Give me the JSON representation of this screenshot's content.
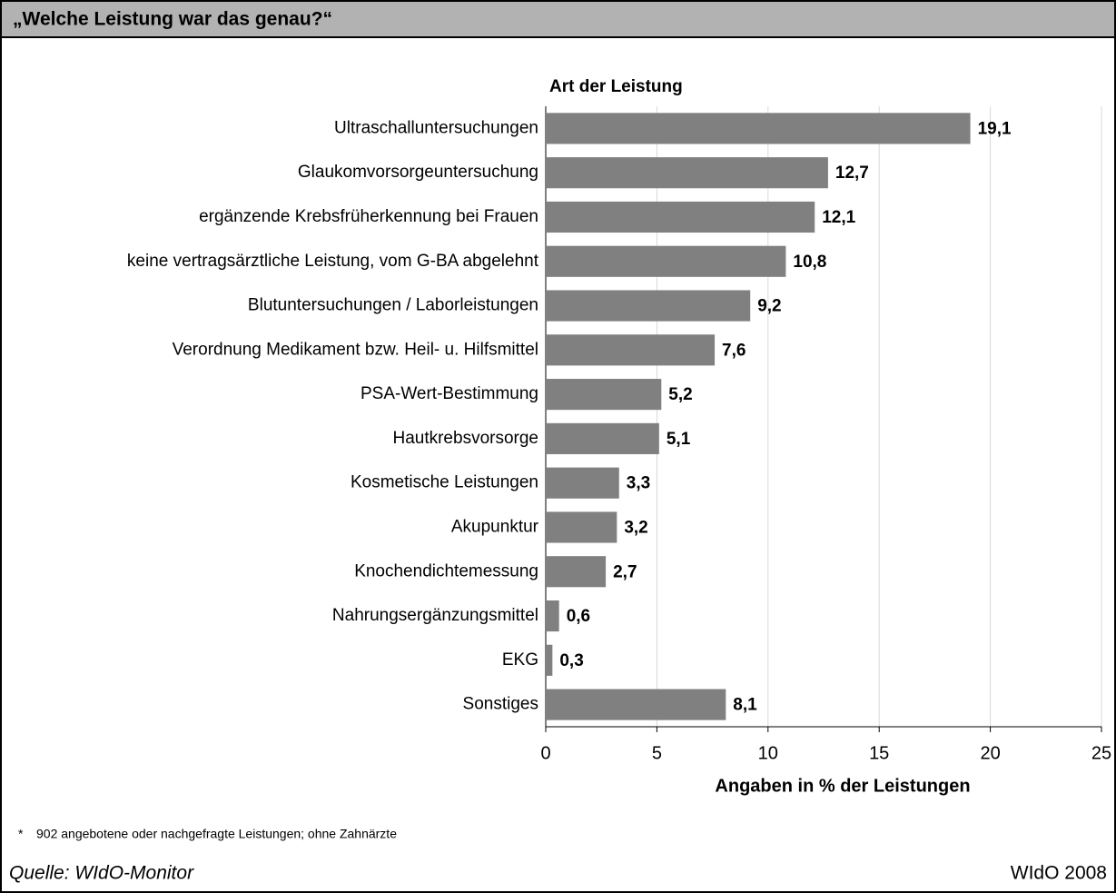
{
  "header": {
    "title": "„Welche Leistung war das genau?“"
  },
  "chart_data": {
    "type": "bar",
    "orientation": "horizontal",
    "ylabel": "Art der Leistung",
    "xlabel": "Angaben in % der Leistungen",
    "categories": [
      "Ultraschalluntersuchungen",
      "Glaukomvorsorgeuntersuchung",
      "ergänzende Krebsfrüherkennung bei Frauen",
      "keine vertragsärztliche Leistung, vom G-BA abgelehnt",
      "Blutuntersuchungen / Laborleistungen",
      "Verordnung Medikament bzw. Heil- u. Hilfsmittel",
      "PSA-Wert-Bestimmung",
      "Hautkrebsvorsorge",
      "Kosmetische Leistungen",
      "Akupunktur",
      "Knochendichtemessung",
      "Nahrungsergänzungsmittel",
      "EKG",
      "Sonstiges"
    ],
    "values": [
      19.1,
      12.7,
      12.1,
      10.8,
      9.2,
      7.6,
      5.2,
      5.1,
      3.3,
      3.2,
      2.7,
      0.6,
      0.3,
      8.1
    ],
    "value_labels": [
      "19,1",
      "12,7",
      "12,1",
      "10,8",
      "9,2",
      "7,6",
      "5,2",
      "5,1",
      "3,3",
      "3,2",
      "2,7",
      "0,6",
      "0,3",
      "8,1"
    ],
    "color": "#808080",
    "xlim": [
      0,
      25
    ],
    "xticks": [
      0,
      5,
      10,
      15,
      20,
      25
    ],
    "grid": true
  },
  "footnote": {
    "marker": "*",
    "text": "902 angebotene oder nachgefragte Leistungen; ohne Zahnärzte"
  },
  "source": "Quelle: WIdO-Monitor",
  "credit": "WIdO 2008"
}
